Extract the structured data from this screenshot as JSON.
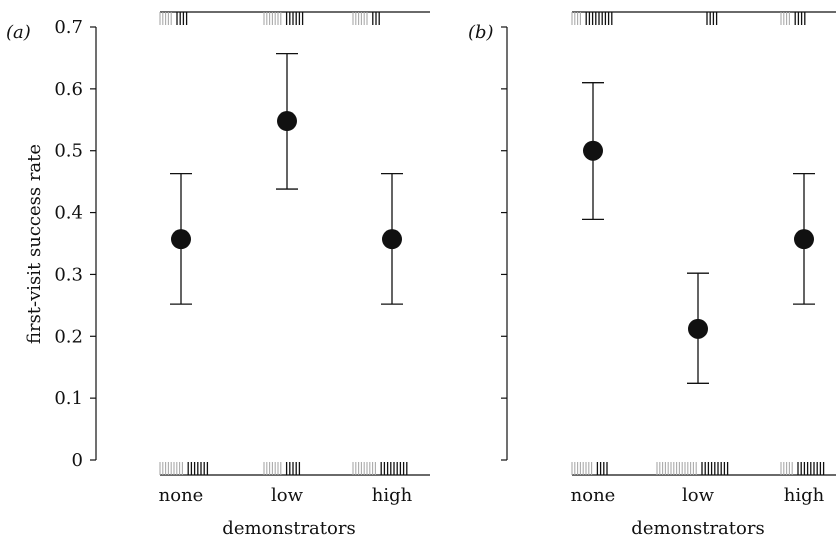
{
  "chart_data": [
    {
      "type": "scatter",
      "panel_label": "(a)",
      "categories": [
        "none",
        "low",
        "high"
      ],
      "values": [
        0.357,
        0.548,
        0.357
      ],
      "err_low": [
        0.252,
        0.438,
        0.252
      ],
      "err_high": [
        0.463,
        0.657,
        0.463
      ],
      "rug_bottom": {
        "grey": [
          9,
          7,
          9
        ],
        "black": [
          7,
          5,
          9
        ]
      },
      "rug_top": {
        "grey": [
          5,
          7,
          6
        ],
        "black": [
          4,
          6,
          3
        ]
      },
      "xlabel": "demonstrators",
      "ylabel": "first-visit success rate",
      "ylim": [
        0,
        0.7
      ],
      "yticks": [
        "0",
        "0.1",
        "0.2",
        "0.3",
        "0.4",
        "0.5",
        "0.6",
        "0.7"
      ]
    },
    {
      "type": "scatter",
      "panel_label": "(b)",
      "categories": [
        "none",
        "low",
        "high"
      ],
      "values": [
        0.5,
        0.212,
        0.357
      ],
      "err_low": [
        0.389,
        0.124,
        0.252
      ],
      "err_high": [
        0.61,
        0.302,
        0.463
      ],
      "rug_bottom": {
        "grey": [
          8,
          15,
          5
        ],
        "black": [
          4,
          9,
          9
        ]
      },
      "rug_top": {
        "grey": [
          4,
          0,
          4
        ],
        "black": [
          9,
          4,
          4
        ]
      },
      "xlabel": "demonstrators",
      "ylabel": "",
      "ylim": [
        0,
        0.7
      ],
      "yticks": [
        "",
        "",
        "",
        "",
        "",
        "",
        "",
        ""
      ]
    }
  ]
}
